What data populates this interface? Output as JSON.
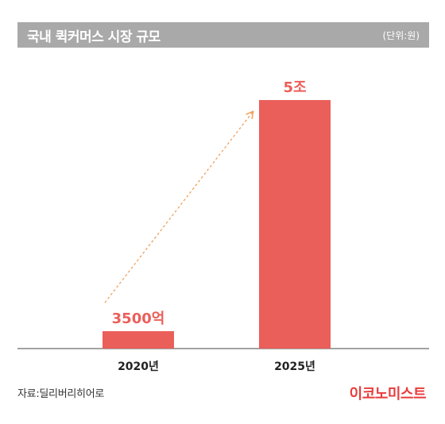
{
  "header": {
    "title": "국내 퀵커머스 시장 규모",
    "unit": "(단위:원)"
  },
  "footer": {
    "source": "자료:딜리버리히어로",
    "brand": "이코노미스트"
  },
  "colors": {
    "bar": "#ea5f5a",
    "value_label": "#ea5f5a",
    "trend_arrow": "#f0a05a",
    "header_bg": "#a9a9a9",
    "brand": "#e83c3c"
  },
  "chart_data": {
    "type": "bar",
    "categories": [
      "2020년",
      "2025년"
    ],
    "values": [
      3500,
      50000
    ],
    "value_labels": [
      "3500억",
      "5조"
    ],
    "unit": "억원",
    "ylim": [
      0,
      50000
    ],
    "grid": false,
    "annotations": [
      {
        "type": "dotted-arrow",
        "from": "2020년",
        "to": "2025년",
        "color": "#f0a05a"
      }
    ]
  }
}
